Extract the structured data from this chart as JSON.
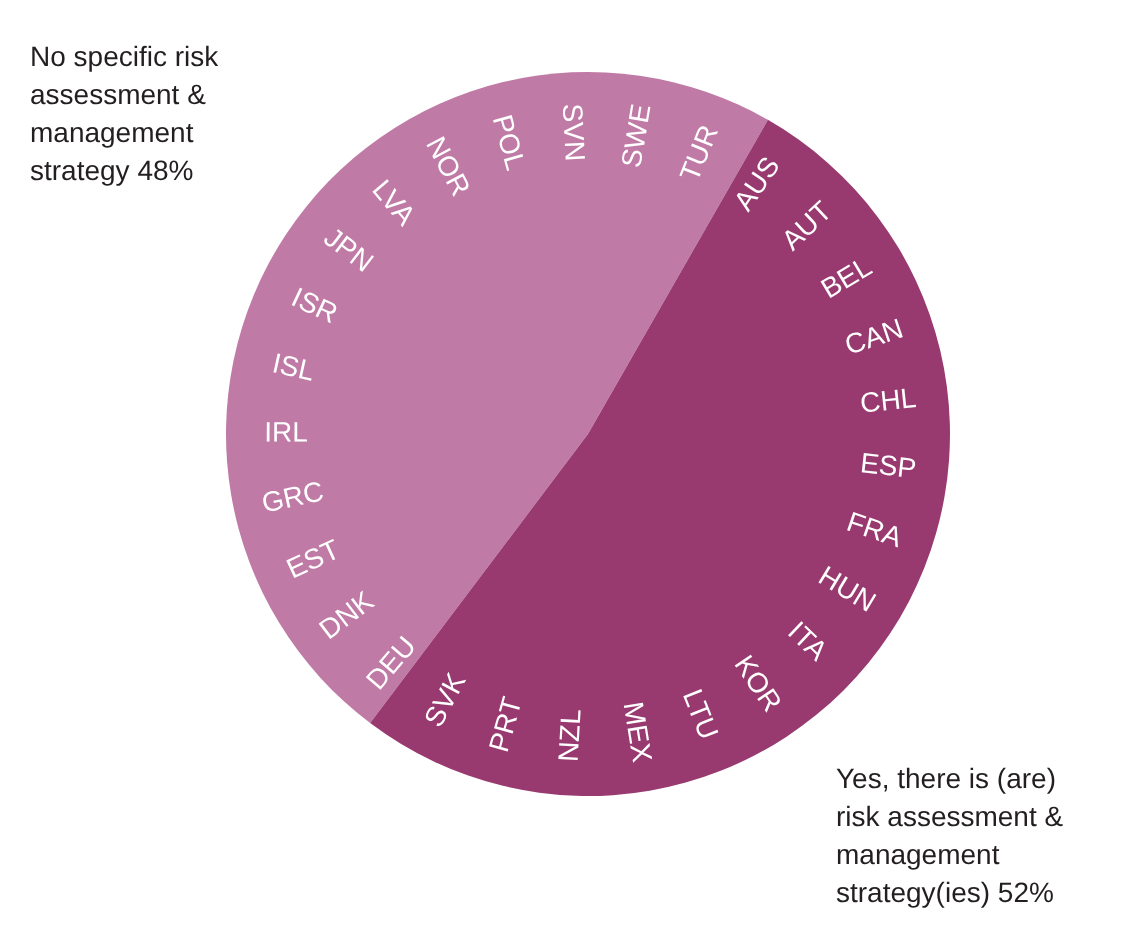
{
  "chart_data": {
    "type": "pie",
    "categories": [
      "No specific risk assessment & management strategy",
      "Yes, there is (are) risk assessment & management strategy(ies)"
    ],
    "values": [
      48,
      52
    ],
    "colors": [
      "#c07aa6",
      "#983a6f"
    ],
    "value_labels": [
      "48%",
      "52%"
    ],
    "annotations": [
      "SVN",
      "SWE",
      "TUR",
      "AUS",
      "AUT",
      "BEL",
      "CAN",
      "CHL",
      "ESP",
      "FRA",
      "HUN",
      "ITA",
      "KOR",
      "LTU",
      "MEX",
      "NZL",
      "PRT",
      "SVK",
      "DEU",
      "DNK",
      "EST",
      "GRC",
      "IRL",
      "ISL",
      "ISR",
      "JPN",
      "LVA",
      "NOR",
      "POL"
    ]
  }
}
